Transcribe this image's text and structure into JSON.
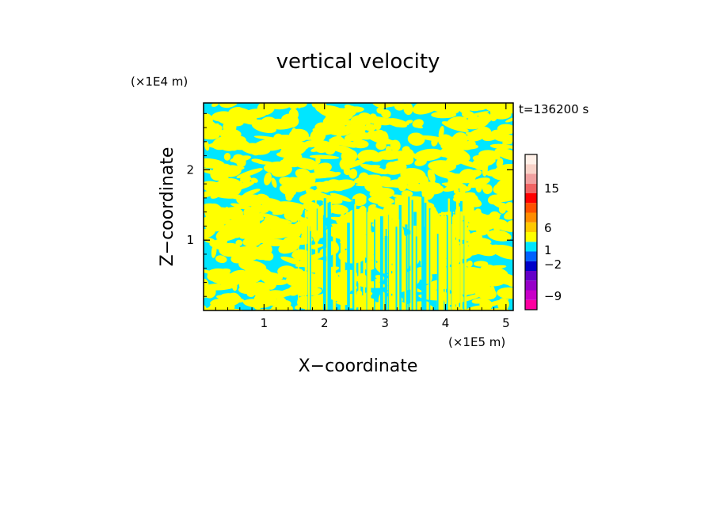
{
  "chart_data": {
    "type": "heatmap",
    "title": "vertical velocity",
    "xlabel": "X−coordinate",
    "ylabel": "Z−coordinate",
    "x_unit": "(×1E5 m)",
    "y_unit": "(×1E4 m)",
    "time_label": "t=136200 s",
    "xlim": [
      0,
      5.12
    ],
    "ylim": [
      0,
      2.95
    ],
    "x_ticks": [
      1,
      2,
      3,
      4,
      5
    ],
    "y_ticks": [
      1,
      2
    ],
    "x_tick_labels": [
      "1",
      "2",
      "3",
      "4",
      "5"
    ],
    "y_tick_labels": [
      "1",
      "2"
    ],
    "grid": false,
    "colorbar": {
      "levels": [
        {
          "color": "#ff00a0"
        },
        {
          "color": "#c800c8"
        },
        {
          "color": "#9600c8"
        },
        {
          "color": "#6400c8"
        },
        {
          "color": "#0000c8"
        },
        {
          "color": "#0060ff"
        },
        {
          "color": "#00e6ff"
        },
        {
          "color": "#ffff00"
        },
        {
          "color": "#ffc800"
        },
        {
          "color": "#ff8c00"
        },
        {
          "color": "#ff5000"
        },
        {
          "color": "#ff0000"
        },
        {
          "color": "#f06464"
        },
        {
          "color": "#f0a0a0"
        },
        {
          "color": "#f8d2c8"
        },
        {
          "color": "#fff0e8"
        }
      ],
      "labels": [
        "−9",
        "−2",
        "1",
        "6",
        "15"
      ]
    },
    "field_colors": {
      "positive": "#ffff00",
      "negative": "#00e6ff"
    }
  }
}
